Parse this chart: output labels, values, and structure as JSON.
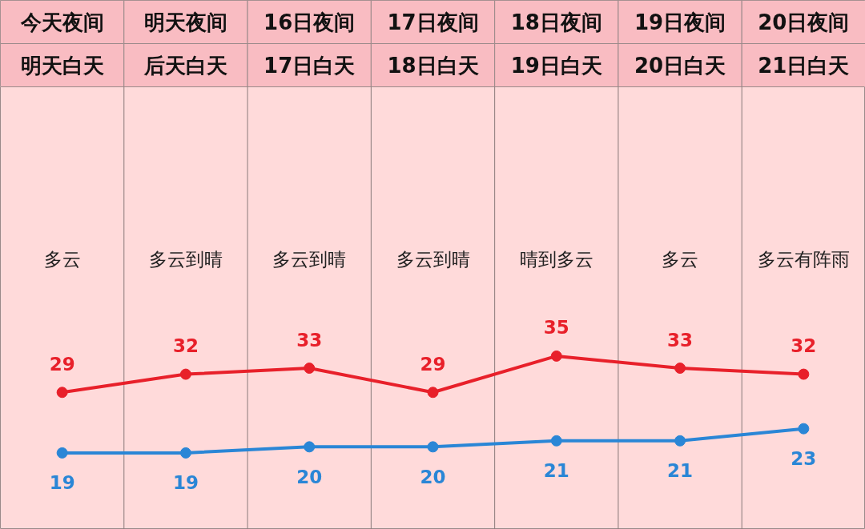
{
  "chart_data": {
    "type": "line",
    "categories": [
      "今天夜间明天白天",
      "明天夜间后天白天",
      "16日夜间17日白天",
      "17日夜间18日白天",
      "18日夜间19日白天",
      "19日夜间20日白天",
      "20日夜间21日白天"
    ],
    "series": [
      {
        "color": "#e8202a",
        "values": [
          29,
          32,
          33,
          29,
          35,
          33,
          32
        ]
      },
      {
        "color": "#2a86d6",
        "values": [
          19,
          19,
          20,
          20,
          21,
          21,
          23
        ]
      }
    ],
    "data_labels": true,
    "marker": "circle",
    "line_style": "solid",
    "annotations": [
      "多云",
      "多云到晴",
      "多云到晴",
      "多云到晴",
      "晴到多云",
      "多云",
      "多云有阵雨"
    ]
  }
}
